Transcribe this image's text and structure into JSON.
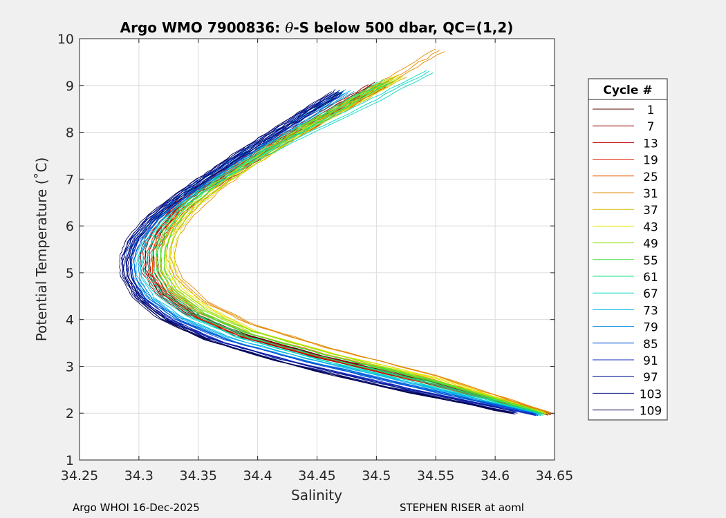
{
  "chart_data": {
    "type": "line",
    "title_prefix": "Argo WMO 7900836: ",
    "title_theta": "θ",
    "title_suffix": "-S below 500 dbar,  QC=(1,2)",
    "xlabel": "Salinity",
    "ylabel": "Potential Temperature (˚C)",
    "xlim": [
      34.25,
      34.65
    ],
    "ylim": [
      1,
      10
    ],
    "xticks": [
      34.25,
      34.3,
      34.35,
      34.4,
      34.45,
      34.5,
      34.55,
      34.6,
      34.65
    ],
    "xtick_labels": [
      "34.25",
      "34.3",
      "34.35",
      "34.4",
      "34.45",
      "34.5",
      "34.55",
      "34.6",
      "34.65"
    ],
    "yticks": [
      1,
      2,
      3,
      4,
      5,
      6,
      7,
      8,
      9,
      10
    ],
    "ytick_labels": [
      "1",
      "2",
      "3",
      "4",
      "5",
      "6",
      "7",
      "8",
      "9",
      "10"
    ],
    "grid": true,
    "legend_title": "Cycle #",
    "legend_position": "right-outside",
    "series": [
      {
        "name": "1",
        "color": "#5a0000",
        "salinity": [
          34.503,
          34.472,
          34.441,
          34.409,
          34.381,
          34.353,
          34.331,
          34.316,
          34.309,
          34.309,
          34.319,
          34.344,
          34.386,
          34.451,
          34.543,
          34.645
        ],
        "theta": [
          9.05,
          8.6,
          8.15,
          7.7,
          7.25,
          6.8,
          6.35,
          5.9,
          5.5,
          5.05,
          4.6,
          4.15,
          3.7,
          3.25,
          2.7,
          2.0
        ]
      },
      {
        "name": "7",
        "color": "#8e0000",
        "salinity": [
          34.497,
          34.466,
          34.435,
          34.404,
          34.376,
          34.348,
          34.326,
          34.311,
          34.305,
          34.306,
          34.317,
          34.342,
          34.384,
          34.449,
          34.541,
          34.646
        ],
        "theta": [
          9.0,
          8.55,
          8.1,
          7.65,
          7.2,
          6.75,
          6.3,
          5.85,
          5.45,
          5.0,
          4.55,
          4.1,
          3.65,
          3.2,
          2.65,
          1.98
        ]
      },
      {
        "name": "13",
        "color": "#c00000",
        "salinity": [
          34.505,
          34.474,
          34.443,
          34.412,
          34.384,
          34.356,
          34.334,
          34.319,
          34.312,
          34.313,
          34.324,
          34.348,
          34.39,
          34.455,
          34.546,
          34.644
        ],
        "theta": [
          9.0,
          8.55,
          8.1,
          7.65,
          7.2,
          6.75,
          6.3,
          5.85,
          5.45,
          5.0,
          4.55,
          4.1,
          3.65,
          3.2,
          2.65,
          1.97
        ]
      },
      {
        "name": "19",
        "color": "#e02000",
        "salinity": [
          34.5,
          34.469,
          34.438,
          34.407,
          34.379,
          34.351,
          34.329,
          34.314,
          34.307,
          34.308,
          34.319,
          34.344,
          34.386,
          34.451,
          34.542,
          34.641
        ],
        "theta": [
          9.0,
          8.55,
          8.1,
          7.65,
          7.2,
          6.75,
          6.3,
          5.85,
          5.45,
          5.0,
          4.55,
          4.1,
          3.65,
          3.2,
          2.65,
          1.98
        ]
      },
      {
        "name": "25",
        "color": "#ec5a00",
        "salinity": [
          34.511,
          34.48,
          34.449,
          34.417,
          34.389,
          34.361,
          34.338,
          34.323,
          34.315,
          34.315,
          34.326,
          34.351,
          34.393,
          34.458,
          34.549,
          34.648
        ],
        "theta": [
          9.1,
          8.65,
          8.2,
          7.75,
          7.3,
          6.85,
          6.4,
          5.95,
          5.5,
          5.05,
          4.6,
          4.15,
          3.7,
          3.25,
          2.7,
          2.0
        ]
      },
      {
        "name": "31",
        "color": "#e68a00",
        "salinity": [
          34.553,
          34.52,
          34.486,
          34.452,
          34.42,
          34.39,
          34.364,
          34.343,
          34.33,
          34.326,
          34.333,
          34.355,
          34.395,
          34.459,
          34.55,
          34.647
        ],
        "theta": [
          9.75,
          9.25,
          8.75,
          8.25,
          7.75,
          7.25,
          6.75,
          6.25,
          5.8,
          5.35,
          4.9,
          4.4,
          3.9,
          3.4,
          2.8,
          2.0
        ]
      },
      {
        "name": "37",
        "color": "#d9b800",
        "salinity": [
          34.522,
          34.49,
          34.458,
          34.426,
          34.396,
          34.368,
          34.344,
          34.328,
          34.319,
          34.318,
          34.328,
          34.352,
          34.393,
          34.457,
          34.548,
          34.645
        ],
        "theta": [
          9.2,
          8.75,
          8.3,
          7.85,
          7.35,
          6.9,
          6.45,
          6.0,
          5.55,
          5.1,
          4.65,
          4.15,
          3.7,
          3.25,
          2.7,
          1.98
        ]
      },
      {
        "name": "43",
        "color": "#e4e400",
        "salinity": [
          34.52,
          34.488,
          34.456,
          34.425,
          34.396,
          34.369,
          34.347,
          34.333,
          34.326,
          34.327,
          34.335,
          34.358,
          34.397,
          34.46,
          34.55,
          34.642
        ],
        "theta": [
          9.2,
          8.75,
          8.3,
          7.85,
          7.35,
          6.9,
          6.45,
          6.0,
          5.55,
          5.1,
          4.7,
          4.25,
          3.75,
          3.3,
          2.75,
          2.0
        ]
      },
      {
        "name": "49",
        "color": "#9be010",
        "salinity": [
          34.515,
          34.483,
          34.451,
          34.42,
          34.392,
          34.365,
          34.343,
          34.329,
          34.322,
          34.322,
          34.331,
          34.355,
          34.395,
          34.458,
          34.548,
          34.642
        ],
        "theta": [
          9.15,
          8.7,
          8.25,
          7.8,
          7.3,
          6.85,
          6.4,
          5.95,
          5.5,
          5.05,
          4.65,
          4.2,
          3.75,
          3.3,
          2.7,
          2.0
        ]
      },
      {
        "name": "55",
        "color": "#40e040",
        "salinity": [
          34.51,
          34.478,
          34.446,
          34.415,
          34.387,
          34.36,
          34.339,
          34.325,
          34.318,
          34.318,
          34.328,
          34.352,
          34.392,
          34.456,
          34.546,
          34.641
        ],
        "theta": [
          9.1,
          8.65,
          8.2,
          7.75,
          7.3,
          6.85,
          6.4,
          5.95,
          5.5,
          5.05,
          4.6,
          4.15,
          3.7,
          3.25,
          2.7,
          1.99
        ]
      },
      {
        "name": "61",
        "color": "#10e080",
        "salinity": [
          34.505,
          34.473,
          34.441,
          34.41,
          34.382,
          34.355,
          34.333,
          34.319,
          34.312,
          34.313,
          34.323,
          34.348,
          34.389,
          34.454,
          34.545,
          34.64
        ],
        "theta": [
          9.05,
          8.6,
          8.15,
          7.7,
          7.25,
          6.8,
          6.35,
          5.9,
          5.45,
          5.0,
          4.55,
          4.1,
          3.65,
          3.2,
          2.65,
          1.98
        ]
      },
      {
        "name": "67",
        "color": "#00d8c0",
        "salinity": [
          34.545,
          34.5,
          34.455,
          34.41,
          34.372,
          34.342,
          34.321,
          34.308,
          34.303,
          34.306,
          34.318,
          34.344,
          34.386,
          34.451,
          34.542,
          34.638
        ],
        "theta": [
          9.3,
          8.7,
          8.15,
          7.6,
          7.1,
          6.6,
          6.15,
          5.7,
          5.3,
          4.9,
          4.5,
          4.05,
          3.6,
          3.15,
          2.6,
          1.97
        ]
      },
      {
        "name": "73",
        "color": "#00b4e8",
        "salinity": [
          34.478,
          34.449,
          34.42,
          34.391,
          34.364,
          34.339,
          34.318,
          34.304,
          34.297,
          34.298,
          34.309,
          34.335,
          34.378,
          34.444,
          34.537,
          34.637
        ],
        "theta": [
          8.9,
          8.45,
          8.0,
          7.55,
          7.1,
          6.65,
          6.2,
          5.75,
          5.35,
          4.95,
          4.5,
          4.05,
          3.6,
          3.15,
          2.6,
          1.97
        ]
      },
      {
        "name": "79",
        "color": "#0088e0",
        "salinity": [
          34.472,
          34.444,
          34.416,
          34.388,
          34.362,
          34.337,
          34.316,
          34.302,
          34.296,
          34.297,
          34.308,
          34.334,
          34.377,
          34.443,
          34.536,
          34.636
        ],
        "theta": [
          8.85,
          8.4,
          7.95,
          7.5,
          7.05,
          6.6,
          6.15,
          5.7,
          5.3,
          4.9,
          4.45,
          4.0,
          3.55,
          3.1,
          2.55,
          1.97
        ]
      },
      {
        "name": "85",
        "color": "#0050d8",
        "salinity": [
          34.47,
          34.442,
          34.414,
          34.386,
          34.36,
          34.334,
          34.313,
          34.298,
          34.292,
          34.294,
          34.306,
          34.332,
          34.375,
          34.441,
          34.534,
          34.635
        ],
        "theta": [
          8.85,
          8.4,
          7.95,
          7.5,
          7.05,
          6.6,
          6.15,
          5.7,
          5.3,
          4.9,
          4.45,
          4.0,
          3.55,
          3.1,
          2.55,
          1.97
        ]
      },
      {
        "name": "91",
        "color": "#1428c0",
        "salinity": [
          34.465,
          34.437,
          34.41,
          34.382,
          34.356,
          34.331,
          34.31,
          34.295,
          34.29,
          34.292,
          34.304,
          34.329,
          34.372,
          34.438,
          34.531,
          34.633
        ],
        "theta": [
          8.8,
          8.35,
          7.9,
          7.45,
          7.0,
          6.55,
          6.1,
          5.65,
          5.25,
          4.85,
          4.4,
          3.95,
          3.5,
          3.05,
          2.5,
          1.97
        ]
      },
      {
        "name": "97",
        "color": "#0a1a9a",
        "salinity": [
          34.47,
          34.442,
          34.414,
          34.386,
          34.36,
          34.334,
          34.312,
          34.297,
          34.29,
          34.29,
          34.3,
          34.322,
          34.36,
          34.42,
          34.51,
          34.618
        ],
        "theta": [
          8.9,
          8.45,
          8.0,
          7.55,
          7.1,
          6.65,
          6.2,
          5.75,
          5.35,
          4.95,
          4.5,
          4.05,
          3.6,
          3.15,
          2.6,
          2.02
        ]
      },
      {
        "name": "103",
        "color": "#000a80",
        "salinity": [
          34.468,
          34.44,
          34.412,
          34.384,
          34.358,
          34.332,
          34.31,
          34.295,
          34.289,
          34.29,
          34.3,
          34.322,
          34.36,
          34.42,
          34.51,
          34.616
        ],
        "theta": [
          8.85,
          8.4,
          7.95,
          7.5,
          7.05,
          6.6,
          6.15,
          5.7,
          5.3,
          4.9,
          4.45,
          4.0,
          3.55,
          3.1,
          2.55,
          2.0
        ]
      },
      {
        "name": "109",
        "color": "#00004e",
        "salinity": [
          34.466,
          34.438,
          34.41,
          34.382,
          34.356,
          34.33,
          34.308,
          34.293,
          34.287,
          34.288,
          34.298,
          34.32,
          34.358,
          34.418,
          34.508,
          34.615
        ],
        "theta": [
          8.85,
          8.4,
          7.95,
          7.5,
          7.05,
          6.6,
          6.15,
          5.7,
          5.3,
          4.9,
          4.45,
          4.0,
          3.55,
          3.1,
          2.55,
          2.0
        ]
      }
    ]
  },
  "footer": {
    "left": "Argo WHOI 16-Dec-2025",
    "right": "STEPHEN RISER at aoml"
  }
}
